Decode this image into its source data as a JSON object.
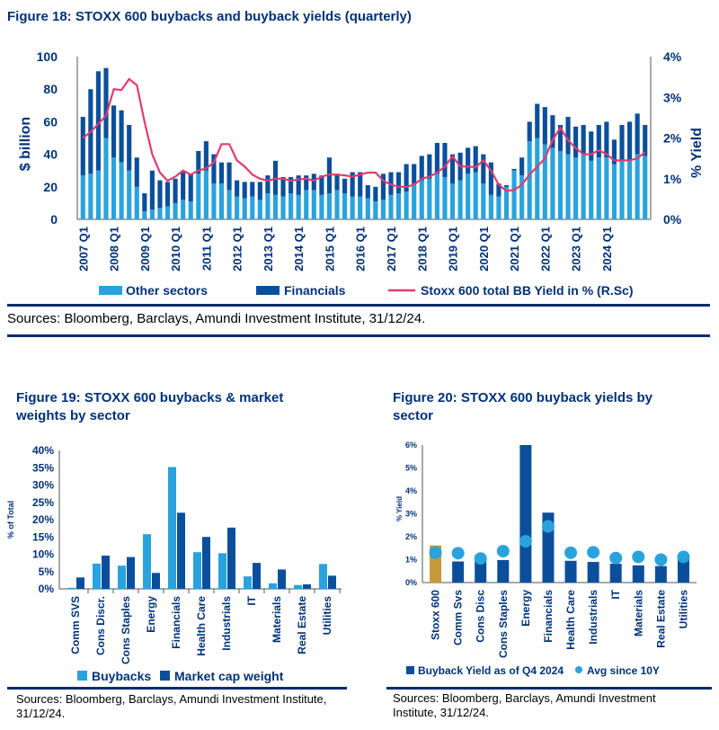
{
  "colors": {
    "light_blue": "#29a3dd",
    "dark_blue": "#0b4f9c",
    "navy": "#0a2d6e",
    "pink": "#e03c6e",
    "gold": "#c69a3a",
    "title_blue": "#003278"
  },
  "fig18": {
    "title": "Figure 18: STOXX 600 buybacks and buyback yields (quarterly)",
    "sources": "Sources: Bloomberg, Barclays, Amundi Investment Institute, 31/12/24."
  },
  "fig19": {
    "title_line1": "Figure 19: STOXX 600 buybacks & market",
    "title_line2": "weights by sector",
    "sources_line1": "Sources: Bloomberg, Barclays, Amundi Investment Institute,",
    "sources_line2": "31/12/24."
  },
  "fig20": {
    "title_line1": "Figure 20: STOXX 600 buyback yields by",
    "title_line2": "sector",
    "sources_line1": "Sources: Bloomberg, Barclays, Amundi Investment",
    "sources_line2": "Institute, 31/12/24."
  },
  "chart_data": [
    {
      "type": "bar",
      "stacked": true,
      "xlabels": [
        "2007 Q1",
        "2008 Q1",
        "2009 Q1",
        "2010 Q1",
        "2011 Q1",
        "2012 Q1",
        "2013 Q1",
        "2014 Q1",
        "2015 Q1",
        "2016 Q1",
        "2017 Q1",
        "2018 Q1",
        "2019 Q1",
        "2020 Q1",
        "2021 Q1",
        "2022 Q1",
        "2023 Q1",
        "2024 Q1"
      ],
      "ylabel": "$ billion",
      "y2label": "% Yield",
      "ylim": [
        0,
        100
      ],
      "y2lim": [
        0,
        4
      ],
      "yticks": [
        "0",
        "20",
        "40",
        "60",
        "80",
        "100"
      ],
      "y2ticks": [
        "0%",
        "1%",
        "2%",
        "3%",
        "4%"
      ],
      "series": [
        {
          "name": "Other sectors",
          "values": [
            27,
            28,
            30,
            50,
            38,
            35,
            30,
            20,
            5,
            6,
            7,
            8,
            10,
            12,
            11,
            28,
            30,
            22,
            22,
            18,
            14,
            13,
            14,
            12,
            16,
            15,
            14,
            16,
            15,
            18,
            18,
            15,
            16,
            18,
            16,
            14,
            14,
            13,
            11,
            12,
            15,
            16,
            17,
            22,
            24,
            25,
            28,
            26,
            22,
            24,
            28,
            29,
            22,
            15,
            14,
            20,
            30,
            27,
            48,
            50,
            46,
            44,
            42,
            40,
            38,
            40,
            36,
            38,
            38,
            34,
            36,
            36,
            40,
            39
          ]
        },
        {
          "name": "Financials",
          "values": [
            36,
            52,
            61,
            43,
            32,
            32,
            28,
            18,
            11,
            24,
            17,
            15,
            15,
            17,
            17,
            14,
            18,
            18,
            13,
            17,
            10,
            10,
            9,
            11,
            11,
            21,
            12,
            10,
            12,
            9,
            10,
            12,
            22,
            10,
            9,
            15,
            15,
            8,
            9,
            16,
            14,
            13,
            17,
            12,
            15,
            15,
            19,
            21,
            18,
            17,
            16,
            16,
            18,
            20,
            8,
            1,
            1,
            11,
            12,
            21,
            23,
            20,
            16,
            23,
            19,
            18,
            18,
            20,
            22,
            15,
            22,
            24,
            25,
            19
          ]
        },
        {
          "name": "Stoxx 600 total BB Yield in % (R.Sc)",
          "axis": "right",
          "values": [
            2.0,
            2.15,
            2.35,
            2.55,
            3.2,
            3.18,
            3.45,
            3.3,
            2.4,
            1.6,
            1.15,
            0.95,
            1.05,
            1.2,
            1.1,
            1.2,
            1.25,
            1.4,
            1.85,
            1.85,
            1.45,
            1.3,
            1.1,
            1.0,
            0.95,
            1.0,
            1.0,
            0.95,
            0.98,
            1.0,
            0.95,
            1.05,
            1.1,
            1.1,
            1.08,
            1.05,
            1.1,
            1.15,
            1.15,
            0.95,
            0.85,
            0.8,
            0.8,
            0.85,
            1.0,
            1.05,
            1.15,
            1.3,
            1.55,
            1.3,
            1.3,
            1.28,
            1.45,
            1.2,
            0.85,
            0.7,
            0.72,
            0.85,
            1.1,
            1.3,
            1.5,
            1.95,
            2.25,
            1.95,
            1.75,
            1.6,
            1.6,
            1.7,
            1.6,
            1.45,
            1.45,
            1.45,
            1.5,
            1.65
          ]
        }
      ]
    },
    {
      "type": "bar",
      "categories": [
        "Comm SVS",
        "Cons Discr.",
        "Cons Staples",
        "Energy",
        "Financials",
        "Health Care",
        "Industrials",
        "IT",
        "Materials",
        "Real Estate",
        "Utilities"
      ],
      "ylabel": "% of Total",
      "ylim": [
        0,
        40
      ],
      "yticks": [
        "0%",
        "5%",
        "10%",
        "15%",
        "20%",
        "25%",
        "30%",
        "35%",
        "40%"
      ],
      "series": [
        {
          "name": "Buybacks",
          "values": [
            0.3,
            7.3,
            6.7,
            15.8,
            35.2,
            10.6,
            10.3,
            3.6,
            1.6,
            1.1,
            7.2
          ]
        },
        {
          "name": "Market cap weight",
          "values": [
            3.3,
            9.6,
            9.2,
            4.6,
            22.0,
            15.0,
            17.7,
            7.5,
            5.6,
            1.3,
            3.8
          ]
        }
      ]
    },
    {
      "type": "bar",
      "categories": [
        "Stoxx 600",
        "Comm Svs",
        "Cons Disc",
        "Cons Staples",
        "Energy",
        "Financials",
        "Health Care",
        "Industrials",
        "IT",
        "Materials",
        "Real Estate",
        "Utilities"
      ],
      "ylabel": "% Yield",
      "ylim": [
        0,
        6
      ],
      "yticks": [
        "0%",
        "1%",
        "2%",
        "3%",
        "4%",
        "5%",
        "6%"
      ],
      "series": [
        {
          "name": "Buyback Yield as of Q4 2024",
          "values": [
            1.62,
            0.92,
            1.15,
            0.98,
            6.0,
            3.05,
            0.95,
            0.9,
            0.82,
            0.75,
            0.72,
            1.22
          ]
        },
        {
          "name": "Avg since 10Y",
          "values": [
            1.3,
            1.28,
            1.05,
            1.37,
            1.8,
            2.45,
            1.3,
            1.32,
            1.07,
            1.12,
            1.0,
            1.12
          ]
        }
      ]
    }
  ],
  "fig18_legend": [
    "Other sectors",
    "Financials",
    "Stoxx 600 total BB Yield in % (R.Sc)"
  ],
  "fig19_legend": [
    "Buybacks",
    "Market cap weight"
  ],
  "fig20_legend": [
    "Buyback Yield as of Q4 2024",
    "Avg since 10Y"
  ]
}
